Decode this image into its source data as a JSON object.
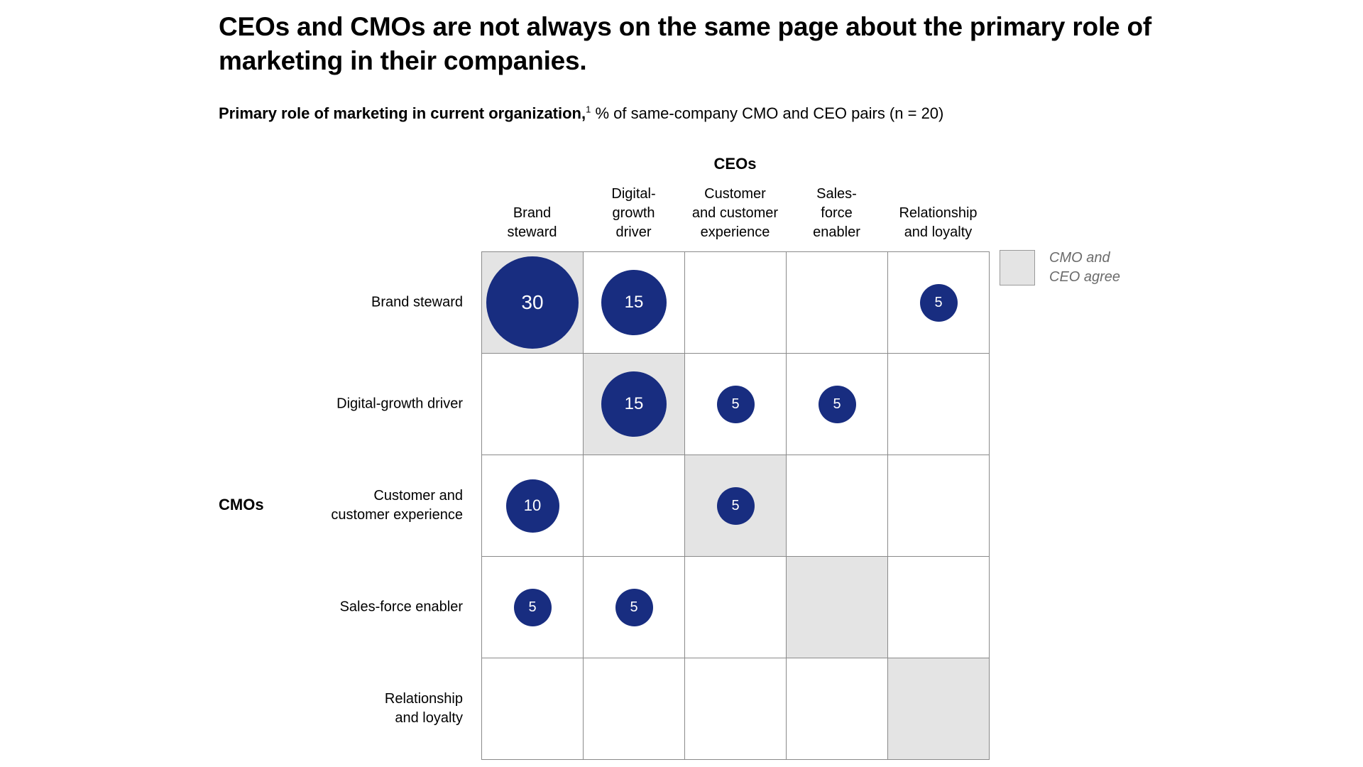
{
  "header": {
    "title_lines": [
      "CEOs and CMOs are not always on the same page about the primary role of",
      "marketing in their companies."
    ],
    "subtitle_bold": "Primary role of marketing in current organization,",
    "subtitle_sup": "1",
    "subtitle_rest": " % of same-company CMO and CEO pairs (n = 20)"
  },
  "legend": {
    "label": "CMO and CEO agree",
    "swatch_color": "#e4e4e4",
    "swatch_border": "#999999"
  },
  "matrix": {
    "col_axis_label": "CEOs",
    "row_axis_label": "CMOs",
    "columns": [
      {
        "label": "Brand steward",
        "lines": "Brand\nsteward"
      },
      {
        "label": "Digital-growth driver",
        "lines": "Digital-\ngrowth\ndriver"
      },
      {
        "label": "Customer and customer experience",
        "lines": "Customer\nand customer\nexperience"
      },
      {
        "label": "Sales-force enabler",
        "lines": "Sales-\nforce\nenabler"
      },
      {
        "label": "Relationship and loyalty",
        "lines": "Relationship\nand loyalty"
      }
    ],
    "rows": [
      {
        "label": "Brand steward",
        "lines": "Brand steward"
      },
      {
        "label": "Digital-growth driver",
        "lines": "Digital-growth driver"
      },
      {
        "label": "Customer and customer experience",
        "lines": "Customer and\ncustomer experience"
      },
      {
        "label": "Sales-force enabler",
        "lines": "Sales-force enabler"
      },
      {
        "label": "Relationship and loyalty",
        "lines": "Relationship\nand loyalty"
      }
    ]
  },
  "chart_data": {
    "type": "heatmap",
    "subtype": "bubble-matrix",
    "title": "CEOs and CMOs are not always on the same page about the primary role of marketing in their companies.",
    "subtitle": "Primary role of marketing in current organization,¹ % of same-company CMO and CEO pairs (n = 20)",
    "x_axis_label": "CEOs",
    "y_axis_label": "CMOs",
    "x_categories": [
      "Brand steward",
      "Digital-growth driver",
      "Customer and customer experience",
      "Sales-force enabler",
      "Relationship and loyalty"
    ],
    "y_categories": [
      "Brand steward",
      "Digital-growth driver",
      "Customer and customer experience",
      "Sales-force enabler",
      "Relationship and loyalty"
    ],
    "values": [
      [
        30,
        15,
        null,
        null,
        5
      ],
      [
        null,
        15,
        5,
        5,
        null
      ],
      [
        10,
        null,
        5,
        null,
        null
      ],
      [
        5,
        5,
        null,
        null,
        null
      ],
      [
        null,
        null,
        null,
        null,
        null
      ]
    ],
    "highlighted_cells": [
      [
        0,
        0
      ],
      [
        1,
        1
      ],
      [
        2,
        2
      ],
      [
        3,
        3
      ],
      [
        4,
        4
      ]
    ],
    "highlight_meaning": "CMO and CEO agree",
    "units": "% of same-company CMO and CEO pairs",
    "n": 20,
    "bubble_color": "#182d80",
    "agree_color": "#e4e4e4",
    "grid_line_color": "#8a8a8a",
    "value_text_color": "#ffffff",
    "legend_position": "top-right"
  }
}
